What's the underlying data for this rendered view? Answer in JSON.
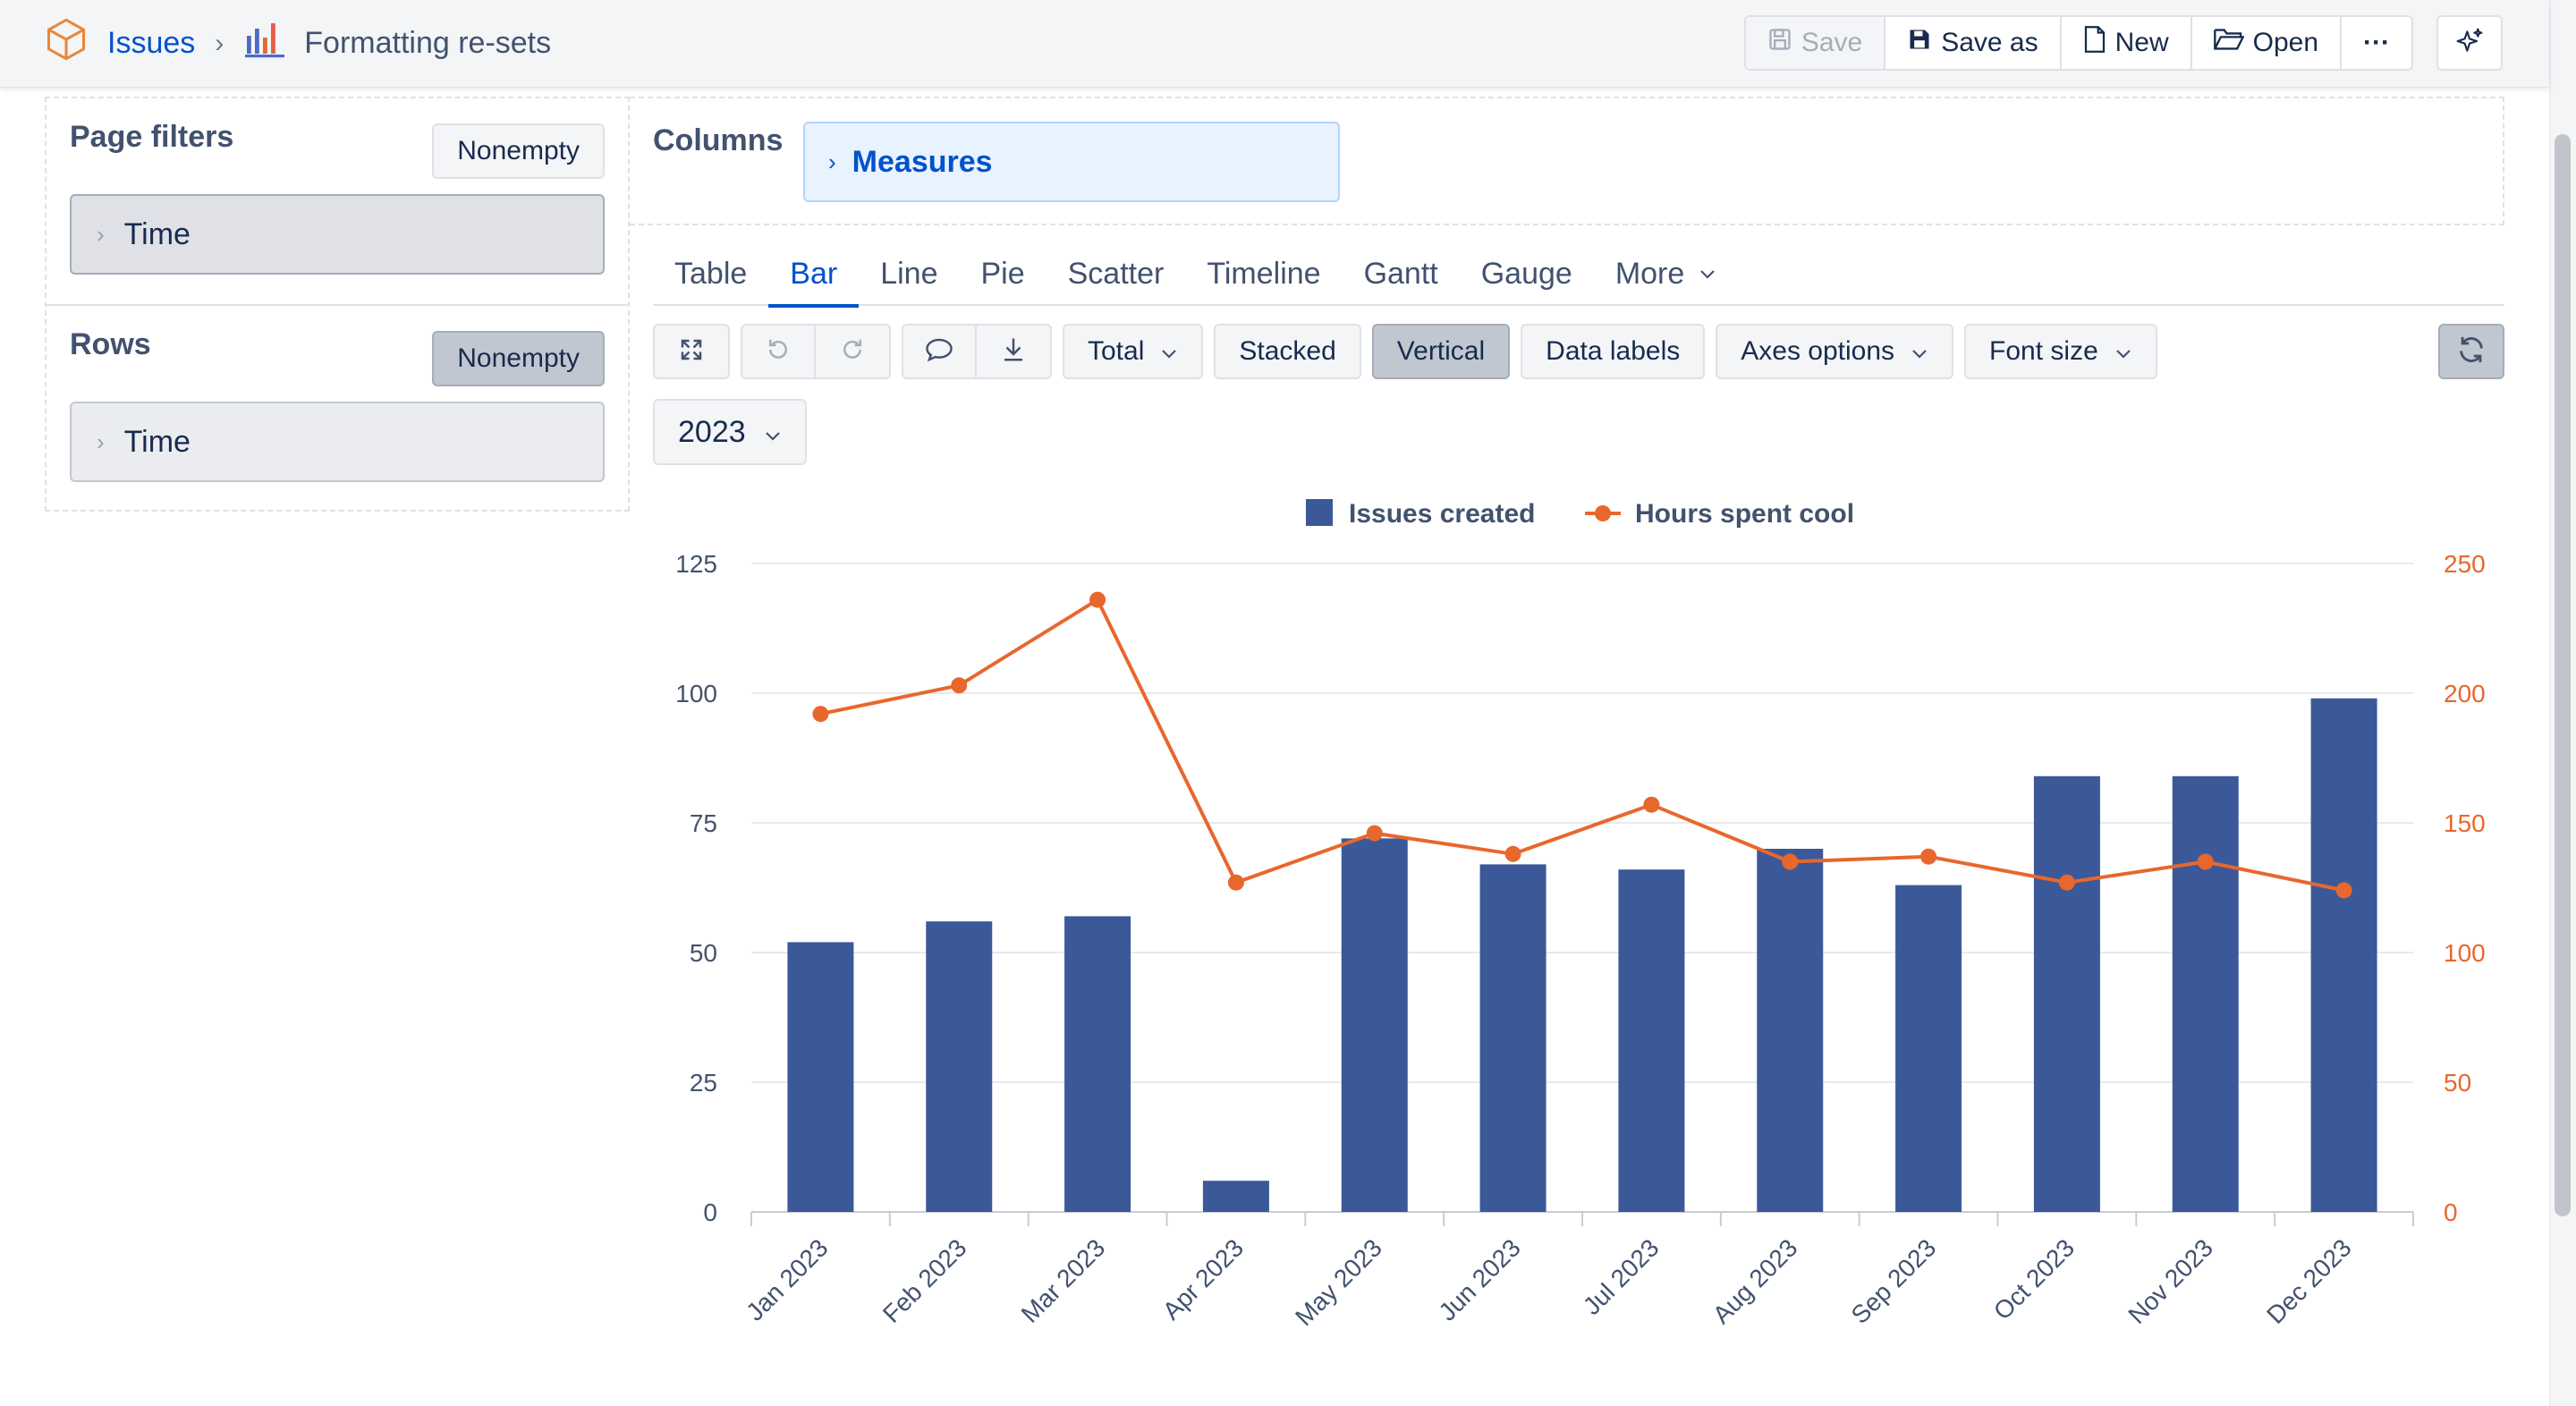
{
  "header": {
    "cube_icon": "cube-icon",
    "crumb_root": "Issues",
    "crumb_sep": "›",
    "report_icon": "bar-chart-icon",
    "report_title": "Formatting re-sets",
    "buttons": {
      "save": "Save",
      "save_as": "Save as",
      "new": "New",
      "open": "Open",
      "more": "···"
    }
  },
  "left_panel": {
    "page_filters": {
      "title": "Page filters",
      "toggle": "Nonempty",
      "dimension": "Time"
    },
    "rows": {
      "title": "Rows",
      "toggle": "Nonempty",
      "dimension": "Time"
    }
  },
  "columns": {
    "title": "Columns",
    "dimension": "Measures"
  },
  "chart_tabs": [
    "Table",
    "Bar",
    "Line",
    "Pie",
    "Scatter",
    "Timeline",
    "Gantt",
    "Gauge",
    "More"
  ],
  "active_tab": "Bar",
  "chart_toolbar": {
    "total": "Total",
    "stacked": "Stacked",
    "vertical": "Vertical",
    "data_labels": "Data labels",
    "axes_options": "Axes options",
    "font_size": "Font size"
  },
  "year_filter": "2023",
  "chart_data": {
    "type": "bar",
    "categories": [
      "Jan 2023",
      "Feb 2023",
      "Mar 2023",
      "Apr 2023",
      "May 2023",
      "Jun 2023",
      "Jul 2023",
      "Aug 2023",
      "Sep 2023",
      "Oct 2023",
      "Nov 2023",
      "Dec 2023"
    ],
    "series": [
      {
        "name": "Issues created",
        "type": "bar",
        "axis": "left",
        "color": "#3b5998",
        "values": [
          52,
          56,
          57,
          6,
          72,
          67,
          66,
          70,
          63,
          84,
          84,
          99
        ]
      },
      {
        "name": "Hours spent cool",
        "type": "line",
        "axis": "right",
        "color": "#e8672d",
        "values": [
          192,
          203,
          236,
          127,
          146,
          138,
          157,
          135,
          137,
          127,
          135,
          124
        ]
      }
    ],
    "y_left": {
      "min": 0,
      "max": 125,
      "ticks": [
        0,
        25,
        50,
        75,
        100,
        125
      ]
    },
    "y_right": {
      "min": 0,
      "max": 250,
      "ticks": [
        0,
        50,
        100,
        150,
        200,
        250
      ]
    },
    "legend_position": "top-center",
    "grid": true
  }
}
